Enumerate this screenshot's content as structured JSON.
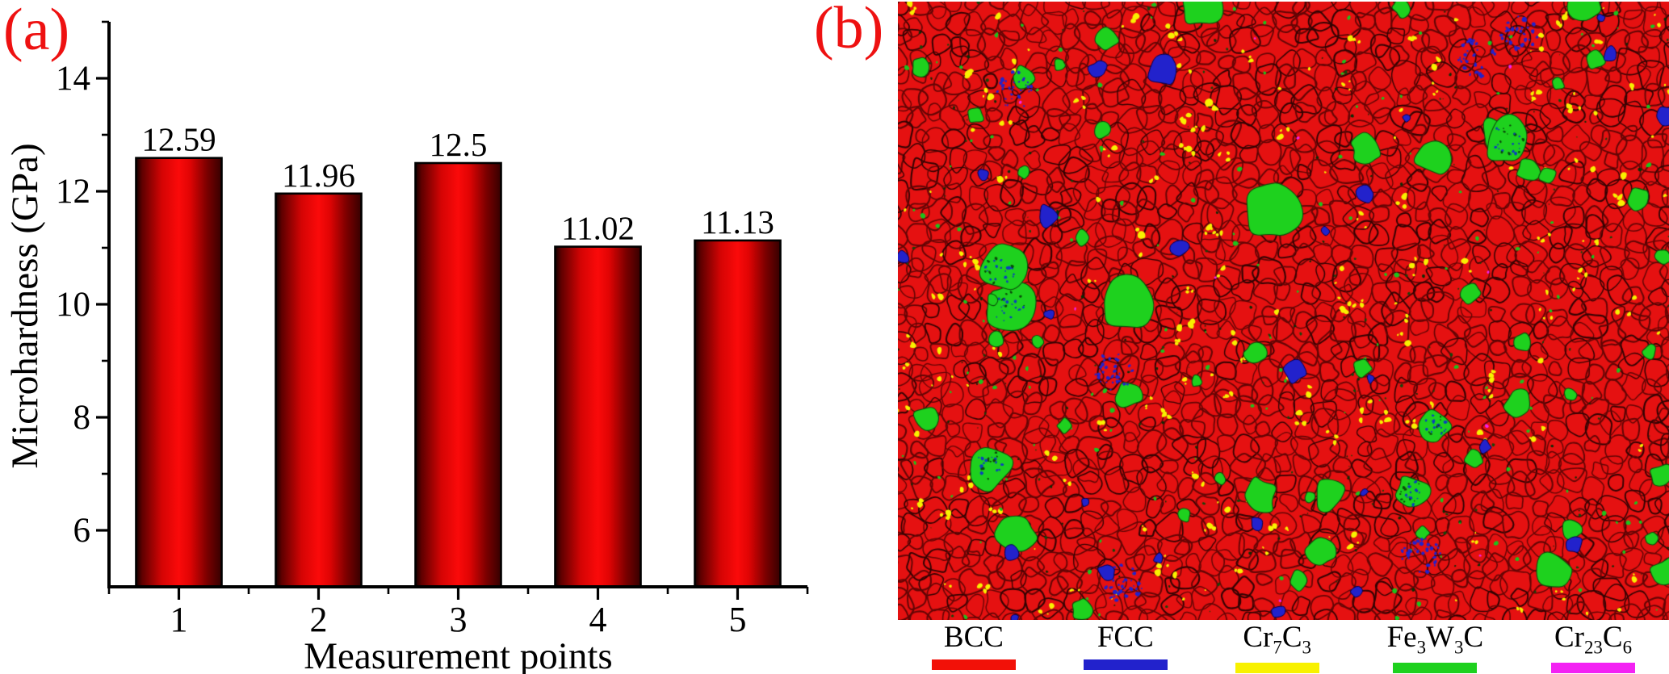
{
  "figure": {
    "panel_a": {
      "label": "(a)",
      "chart_data": {
        "type": "bar",
        "title": "",
        "categories": [
          "1",
          "2",
          "3",
          "4",
          "5"
        ],
        "values": [
          12.59,
          11.96,
          12.5,
          11.02,
          11.13
        ],
        "bar_value_labels": [
          "12.59",
          "11.96",
          "12.5",
          "11.02",
          "11.13"
        ],
        "xlabel": "Measurement points",
        "ylabel": "Microhardness (GPa)",
        "ylim": [
          5,
          15
        ],
        "yticks": [
          6,
          8,
          10,
          12,
          14
        ],
        "minor_yticks": [
          7,
          9,
          11,
          13,
          15
        ],
        "grid": false,
        "legend_position": "none",
        "bar_gradient_stops": [
          "#120000",
          "#5e0000",
          "#d40404",
          "#fb0a0a",
          "#e00404",
          "#7a0000",
          "#360000"
        ],
        "bar_outline_color": "#000000",
        "axis_color": "#000000",
        "text_color": "#000000"
      }
    },
    "panel_b": {
      "label": "(b)",
      "map_colors": {
        "matrix": "#e51111",
        "grain_boundary": "#650505"
      },
      "legend": [
        {
          "name": "BCC",
          "parts": [
            {
              "t": "BCC"
            }
          ],
          "color": "#f21108"
        },
        {
          "name": "FCC",
          "parts": [
            {
              "t": "FCC"
            }
          ],
          "color": "#2222cc"
        },
        {
          "name": "Cr7C3",
          "parts": [
            {
              "t": "Cr"
            },
            {
              "t": "7",
              "sub": true
            },
            {
              "t": "C"
            },
            {
              "t": "3",
              "sub": true
            }
          ],
          "color": "#f8f100"
        },
        {
          "name": "Fe3W3C",
          "parts": [
            {
              "t": "Fe"
            },
            {
              "t": "3",
              "sub": true
            },
            {
              "t": "W"
            },
            {
              "t": "3",
              "sub": true
            },
            {
              "t": "C"
            }
          ],
          "color": "#1ed11e"
        },
        {
          "name": "Cr23C6",
          "parts": [
            {
              "t": "Cr"
            },
            {
              "t": "23",
              "sub": true
            },
            {
              "t": "C"
            },
            {
              "t": "6",
              "sub": true
            }
          ],
          "color": "#f322f3"
        }
      ]
    }
  }
}
